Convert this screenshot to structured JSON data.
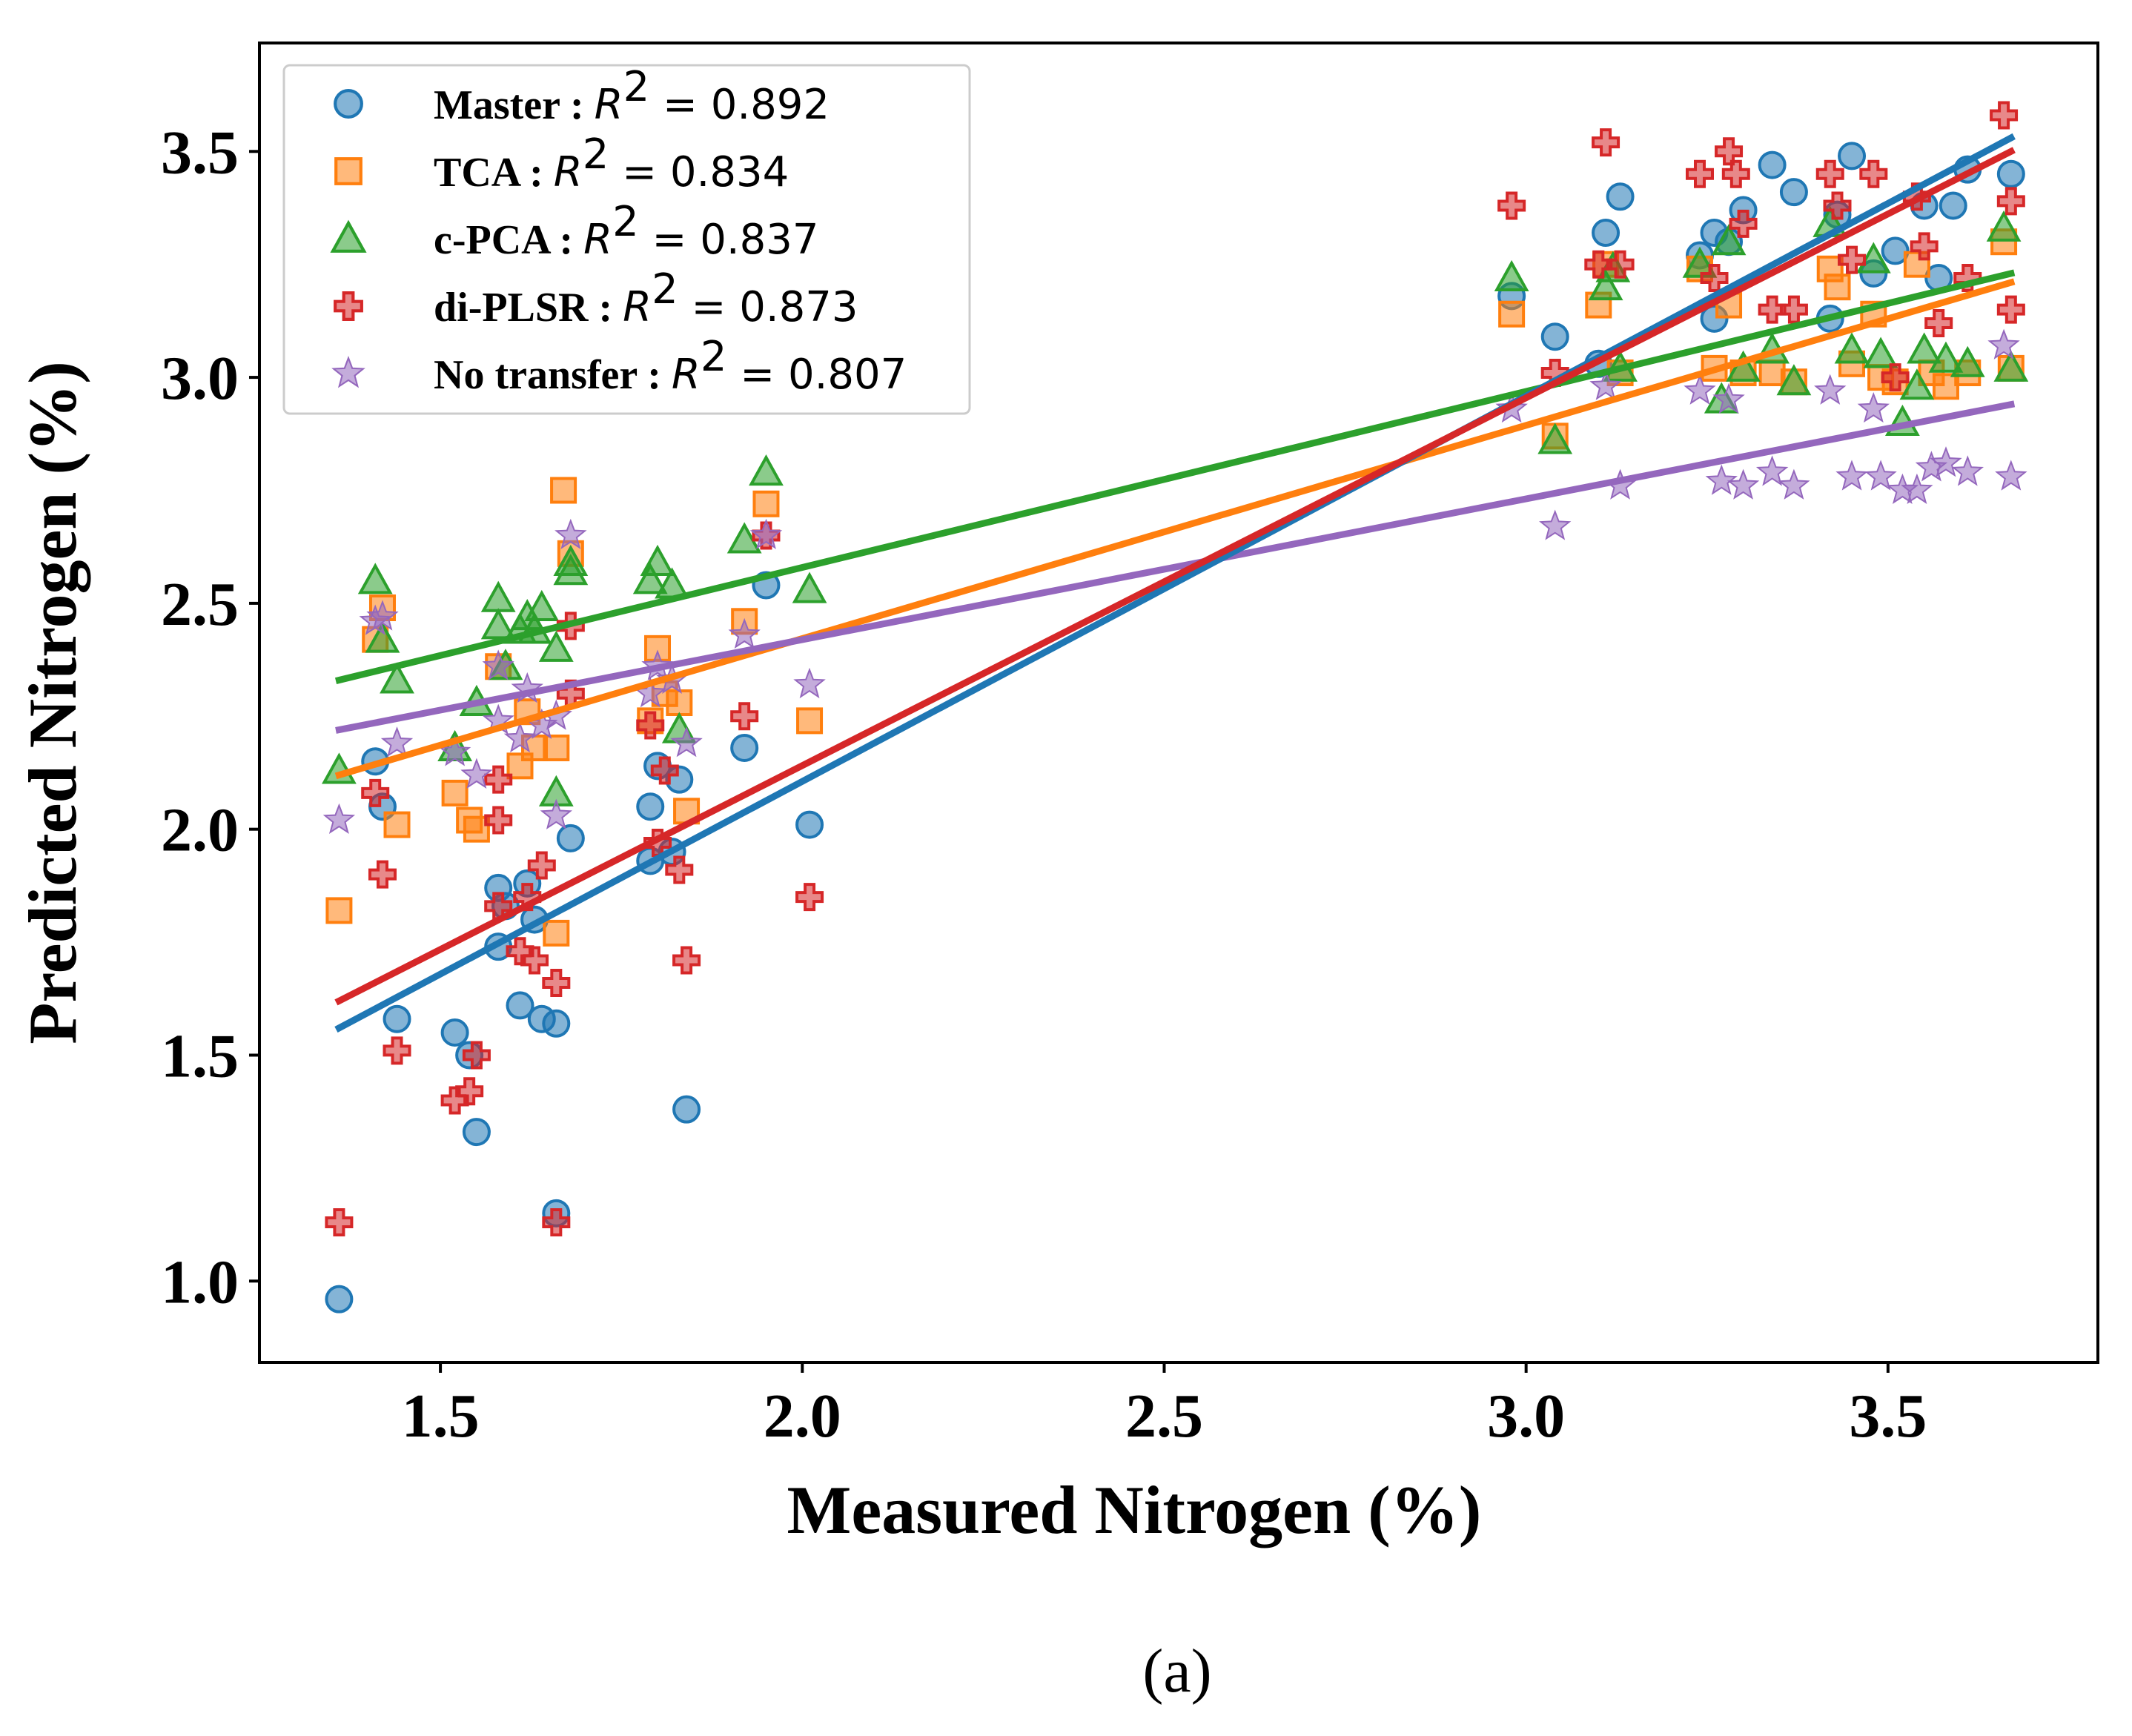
{
  "chart_data": {
    "type": "scatter",
    "xlabel": "Measured Nitrogen (%)",
    "ylabel": "Predicted Nitrogen (%)",
    "caption": "(a)",
    "xlim": [
      1.25,
      3.79
    ],
    "ylim": [
      0.82,
      3.74
    ],
    "xticks": [
      1.5,
      2.0,
      2.5,
      3.0,
      3.5
    ],
    "yticks": [
      1.0,
      1.5,
      2.0,
      2.5,
      3.0,
      3.5
    ],
    "legend_position": "upper-left",
    "series": [
      {
        "name": "Master",
        "r2_label": "R",
        "r2_sup": "2",
        "r2_value": "= 0.892",
        "color": "#1f77b4",
        "marker": "circle",
        "fit": [
          [
            1.36,
            1.56
          ],
          [
            3.67,
            3.53
          ]
        ],
        "points": [
          [
            1.36,
            0.96
          ],
          [
            1.41,
            2.15
          ],
          [
            1.42,
            2.05
          ],
          [
            1.44,
            1.58
          ],
          [
            1.52,
            1.55
          ],
          [
            1.54,
            1.5
          ],
          [
            1.55,
            1.33
          ],
          [
            1.58,
            1.87
          ],
          [
            1.58,
            1.74
          ],
          [
            1.59,
            1.83
          ],
          [
            1.61,
            1.61
          ],
          [
            1.62,
            1.88
          ],
          [
            1.63,
            1.8
          ],
          [
            1.64,
            1.58
          ],
          [
            1.66,
            1.57
          ],
          [
            1.66,
            1.15
          ],
          [
            1.68,
            1.98
          ],
          [
            1.79,
            2.05
          ],
          [
            1.79,
            1.93
          ],
          [
            1.8,
            2.14
          ],
          [
            1.82,
            1.95
          ],
          [
            1.83,
            2.11
          ],
          [
            1.84,
            1.38
          ],
          [
            1.92,
            2.18
          ],
          [
            1.95,
            2.54
          ],
          [
            2.01,
            2.01
          ],
          [
            2.98,
            3.18
          ],
          [
            3.04,
            3.09
          ],
          [
            3.1,
            3.03
          ],
          [
            3.11,
            3.32
          ],
          [
            3.13,
            3.4
          ],
          [
            3.24,
            3.27
          ],
          [
            3.26,
            3.13
          ],
          [
            3.26,
            3.32
          ],
          [
            3.28,
            3.3
          ],
          [
            3.3,
            3.37
          ],
          [
            3.34,
            3.47
          ],
          [
            3.37,
            3.41
          ],
          [
            3.42,
            3.13
          ],
          [
            3.43,
            3.36
          ],
          [
            3.45,
            3.49
          ],
          [
            3.48,
            3.23
          ],
          [
            3.51,
            3.28
          ],
          [
            3.55,
            3.38
          ],
          [
            3.57,
            3.22
          ],
          [
            3.59,
            3.38
          ],
          [
            3.61,
            3.46
          ],
          [
            3.67,
            3.45
          ]
        ]
      },
      {
        "name": "TCA",
        "r2_label": "R",
        "r2_sup": "2",
        "r2_value": "= 0.834",
        "color": "#ff7f0e",
        "marker": "square",
        "fit": [
          [
            1.36,
            2.12
          ],
          [
            3.67,
            3.21
          ]
        ],
        "points": [
          [
            1.36,
            1.82
          ],
          [
            1.41,
            2.42
          ],
          [
            1.42,
            2.49
          ],
          [
            1.44,
            2.01
          ],
          [
            1.52,
            2.08
          ],
          [
            1.54,
            2.02
          ],
          [
            1.55,
            2.0
          ],
          [
            1.58,
            2.36
          ],
          [
            1.61,
            2.14
          ],
          [
            1.62,
            2.26
          ],
          [
            1.63,
            2.18
          ],
          [
            1.66,
            2.18
          ],
          [
            1.66,
            1.77
          ],
          [
            1.67,
            2.75
          ],
          [
            1.68,
            2.61
          ],
          [
            1.79,
            2.24
          ],
          [
            1.8,
            2.4
          ],
          [
            1.81,
            2.3
          ],
          [
            1.83,
            2.28
          ],
          [
            1.84,
            2.04
          ],
          [
            1.92,
            2.46
          ],
          [
            1.95,
            2.72
          ],
          [
            2.01,
            2.24
          ],
          [
            2.98,
            3.14
          ],
          [
            3.04,
            2.87
          ],
          [
            3.1,
            3.16
          ],
          [
            3.11,
            3.25
          ],
          [
            3.13,
            3.01
          ],
          [
            3.24,
            3.24
          ],
          [
            3.26,
            3.02
          ],
          [
            3.28,
            3.16
          ],
          [
            3.3,
            3.01
          ],
          [
            3.34,
            3.01
          ],
          [
            3.37,
            2.99
          ],
          [
            3.42,
            3.24
          ],
          [
            3.43,
            3.2
          ],
          [
            3.45,
            3.03
          ],
          [
            3.48,
            3.14
          ],
          [
            3.49,
            3.0
          ],
          [
            3.51,
            2.99
          ],
          [
            3.54,
            3.25
          ],
          [
            3.56,
            3.01
          ],
          [
            3.58,
            2.98
          ],
          [
            3.61,
            3.01
          ],
          [
            3.66,
            3.3
          ],
          [
            3.67,
            3.02
          ]
        ]
      },
      {
        "name": "c-PCA",
        "r2_label": "R",
        "r2_sup": "2",
        "r2_value": "= 0.837",
        "color": "#2ca02c",
        "marker": "triangle",
        "fit": [
          [
            1.36,
            2.33
          ],
          [
            3.67,
            3.23
          ]
        ],
        "points": [
          [
            1.36,
            2.13
          ],
          [
            1.41,
            2.55
          ],
          [
            1.42,
            2.42
          ],
          [
            1.44,
            2.33
          ],
          [
            1.52,
            2.18
          ],
          [
            1.55,
            2.28
          ],
          [
            1.58,
            2.51
          ],
          [
            1.58,
            2.45
          ],
          [
            1.59,
            2.36
          ],
          [
            1.61,
            2.44
          ],
          [
            1.62,
            2.47
          ],
          [
            1.63,
            2.44
          ],
          [
            1.64,
            2.49
          ],
          [
            1.66,
            2.4
          ],
          [
            1.66,
            2.08
          ],
          [
            1.68,
            2.57
          ],
          [
            1.68,
            2.59
          ],
          [
            1.79,
            2.55
          ],
          [
            1.8,
            2.59
          ],
          [
            1.82,
            2.54
          ],
          [
            1.83,
            2.22
          ],
          [
            1.92,
            2.64
          ],
          [
            1.95,
            2.79
          ],
          [
            2.01,
            2.53
          ],
          [
            2.98,
            3.22
          ],
          [
            3.04,
            2.86
          ],
          [
            3.11,
            3.2
          ],
          [
            3.12,
            3.24
          ],
          [
            3.13,
            3.02
          ],
          [
            3.24,
            3.25
          ],
          [
            3.27,
            2.95
          ],
          [
            3.28,
            3.3
          ],
          [
            3.3,
            3.02
          ],
          [
            3.34,
            3.06
          ],
          [
            3.37,
            2.99
          ],
          [
            3.42,
            3.34
          ],
          [
            3.45,
            3.06
          ],
          [
            3.48,
            3.26
          ],
          [
            3.49,
            3.05
          ],
          [
            3.52,
            2.9
          ],
          [
            3.54,
            2.98
          ],
          [
            3.55,
            3.06
          ],
          [
            3.58,
            3.04
          ],
          [
            3.61,
            3.03
          ],
          [
            3.66,
            3.33
          ],
          [
            3.67,
            3.02
          ]
        ]
      },
      {
        "name": "di-PLSR",
        "r2_label": "R",
        "r2_sup": "2",
        "r2_value": "= 0.873",
        "color": "#d62728",
        "marker": "plus",
        "fit": [
          [
            1.36,
            1.62
          ],
          [
            3.67,
            3.5
          ]
        ],
        "points": [
          [
            1.36,
            1.13
          ],
          [
            1.41,
            2.08
          ],
          [
            1.42,
            1.9
          ],
          [
            1.44,
            1.51
          ],
          [
            1.52,
            1.4
          ],
          [
            1.54,
            1.42
          ],
          [
            1.55,
            1.5
          ],
          [
            1.58,
            2.11
          ],
          [
            1.58,
            2.02
          ],
          [
            1.58,
            1.83
          ],
          [
            1.61,
            1.73
          ],
          [
            1.62,
            1.85
          ],
          [
            1.63,
            1.71
          ],
          [
            1.64,
            1.92
          ],
          [
            1.66,
            1.66
          ],
          [
            1.66,
            1.13
          ],
          [
            1.68,
            2.45
          ],
          [
            1.68,
            2.3
          ],
          [
            1.79,
            2.23
          ],
          [
            1.8,
            1.97
          ],
          [
            1.81,
            2.13
          ],
          [
            1.83,
            1.91
          ],
          [
            1.84,
            1.71
          ],
          [
            1.92,
            2.25
          ],
          [
            1.95,
            2.65
          ],
          [
            2.01,
            1.85
          ],
          [
            2.98,
            3.38
          ],
          [
            3.04,
            3.01
          ],
          [
            3.1,
            3.25
          ],
          [
            3.11,
            3.52
          ],
          [
            3.13,
            3.25
          ],
          [
            3.24,
            3.45
          ],
          [
            3.26,
            3.22
          ],
          [
            3.28,
            3.5
          ],
          [
            3.29,
            3.45
          ],
          [
            3.3,
            3.34
          ],
          [
            3.34,
            3.15
          ],
          [
            3.37,
            3.15
          ],
          [
            3.42,
            3.45
          ],
          [
            3.43,
            3.38
          ],
          [
            3.45,
            3.26
          ],
          [
            3.48,
            3.45
          ],
          [
            3.51,
            3.0
          ],
          [
            3.54,
            3.4
          ],
          [
            3.55,
            3.29
          ],
          [
            3.57,
            3.12
          ],
          [
            3.61,
            3.22
          ],
          [
            3.66,
            3.58
          ],
          [
            3.67,
            3.39
          ],
          [
            3.67,
            3.15
          ]
        ]
      },
      {
        "name": "No transfer",
        "r2_label": "R",
        "r2_sup": "2",
        "r2_value": "= 0.807",
        "color": "#9467bd",
        "marker": "star",
        "fit": [
          [
            1.36,
            2.22
          ],
          [
            3.67,
            2.94
          ]
        ],
        "points": [
          [
            1.36,
            2.02
          ],
          [
            1.41,
            2.46
          ],
          [
            1.42,
            2.47
          ],
          [
            1.44,
            2.19
          ],
          [
            1.52,
            2.17
          ],
          [
            1.55,
            2.12
          ],
          [
            1.58,
            2.36
          ],
          [
            1.58,
            2.24
          ],
          [
            1.61,
            2.2
          ],
          [
            1.62,
            2.31
          ],
          [
            1.64,
            2.23
          ],
          [
            1.66,
            2.25
          ],
          [
            1.66,
            2.03
          ],
          [
            1.68,
            2.65
          ],
          [
            1.79,
            2.3
          ],
          [
            1.8,
            2.36
          ],
          [
            1.82,
            2.33
          ],
          [
            1.84,
            2.19
          ],
          [
            1.92,
            2.43
          ],
          [
            1.95,
            2.65
          ],
          [
            2.01,
            2.32
          ],
          [
            2.98,
            2.93
          ],
          [
            3.04,
            2.67
          ],
          [
            3.11,
            2.98
          ],
          [
            3.13,
            2.76
          ],
          [
            3.24,
            2.97
          ],
          [
            3.27,
            2.77
          ],
          [
            3.28,
            2.95
          ],
          [
            3.3,
            2.76
          ],
          [
            3.34,
            2.79
          ],
          [
            3.37,
            2.76
          ],
          [
            3.42,
            2.97
          ],
          [
            3.45,
            2.78
          ],
          [
            3.48,
            2.93
          ],
          [
            3.49,
            2.78
          ],
          [
            3.52,
            2.75
          ],
          [
            3.54,
            2.75
          ],
          [
            3.56,
            2.8
          ],
          [
            3.58,
            2.81
          ],
          [
            3.61,
            2.79
          ],
          [
            3.66,
            3.07
          ],
          [
            3.67,
            2.78
          ]
        ]
      }
    ]
  }
}
